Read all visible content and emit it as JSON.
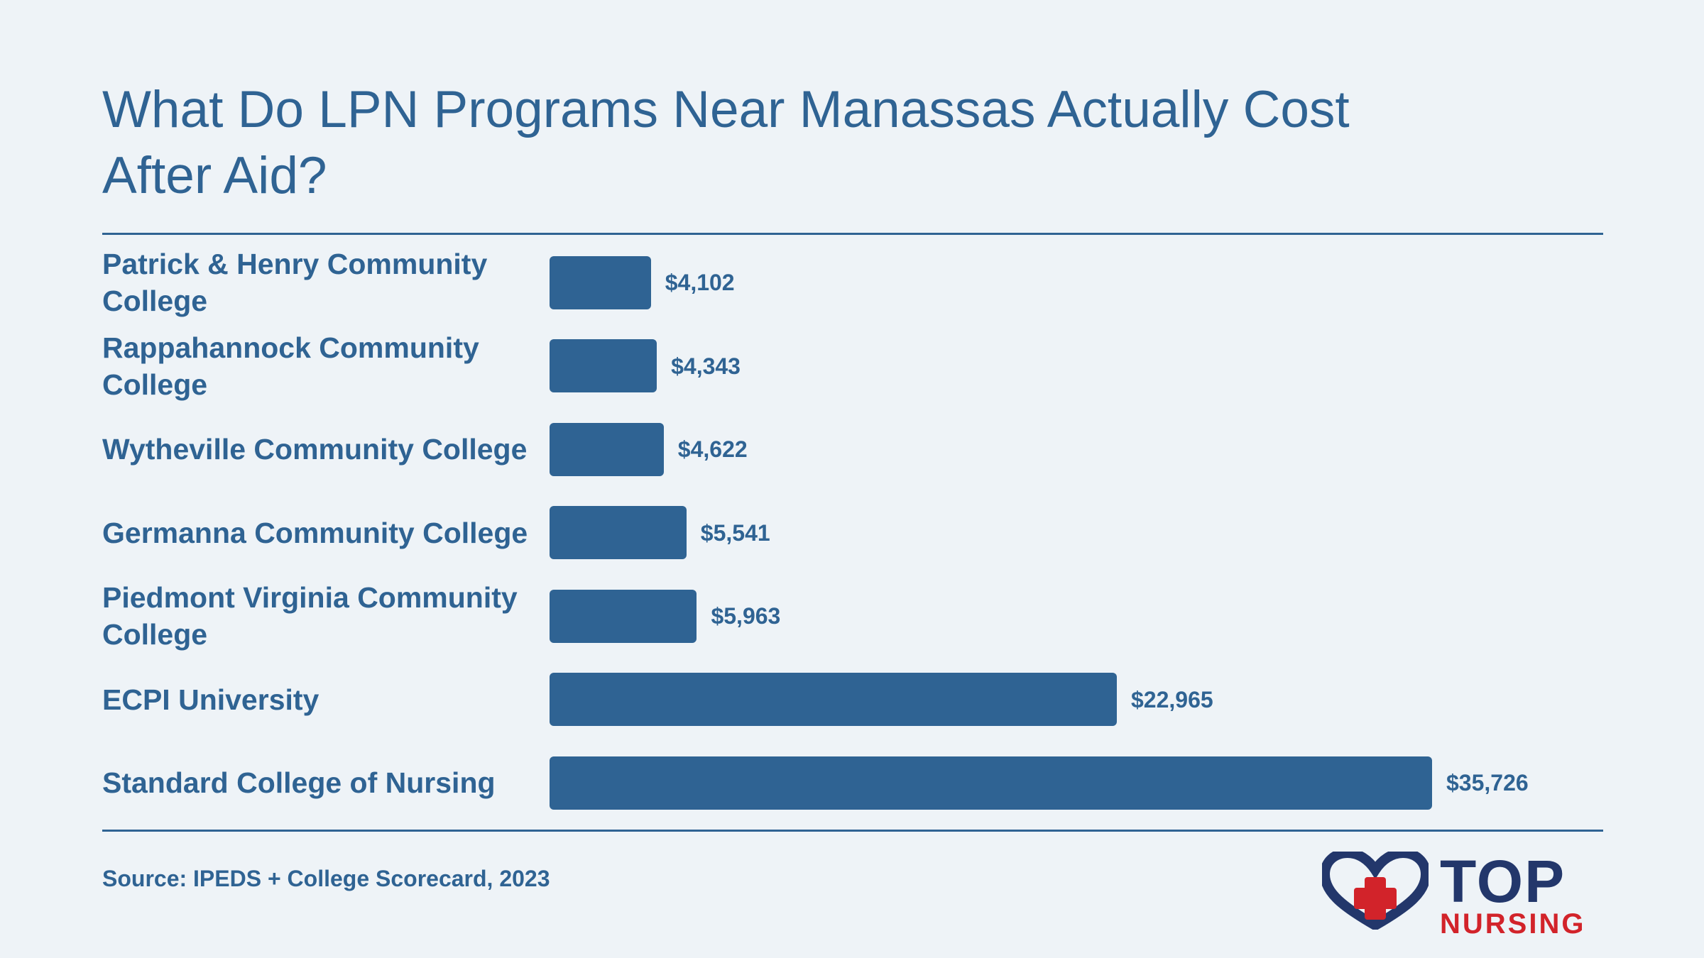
{
  "title": "What Do LPN Programs Near Manassas Actually Cost After Aid?",
  "source": "Source: IPEDS + College Scorecard, 2023",
  "logo": {
    "word_top": "TOP",
    "word_bottom": "NURSING",
    "icon": "heart-plus-icon"
  },
  "colors": {
    "bar": "#2f6393",
    "text": "#2f6393",
    "background": "#eef3f7",
    "logo_navy": "#23376b",
    "logo_red": "#d2232a"
  },
  "chart_data": {
    "type": "bar",
    "orientation": "horizontal",
    "title": "What Do LPN Programs Near Manassas Actually Cost After Aid?",
    "xlim": [
      0,
      35726
    ],
    "grid": false,
    "categories": [
      "Patrick & Henry Community College",
      "Rappahannock Community College",
      "Wytheville Community College",
      "Germanna Community College",
      "Piedmont Virginia Community College",
      "ECPI University",
      "Standard College of Nursing"
    ],
    "values": [
      4102,
      4343,
      4622,
      5541,
      5963,
      22965,
      35726
    ],
    "value_labels": [
      "$4,102",
      "$4,343",
      "$4,622",
      "$5,541",
      "$5,963",
      "$22,965",
      "$35,726"
    ]
  }
}
